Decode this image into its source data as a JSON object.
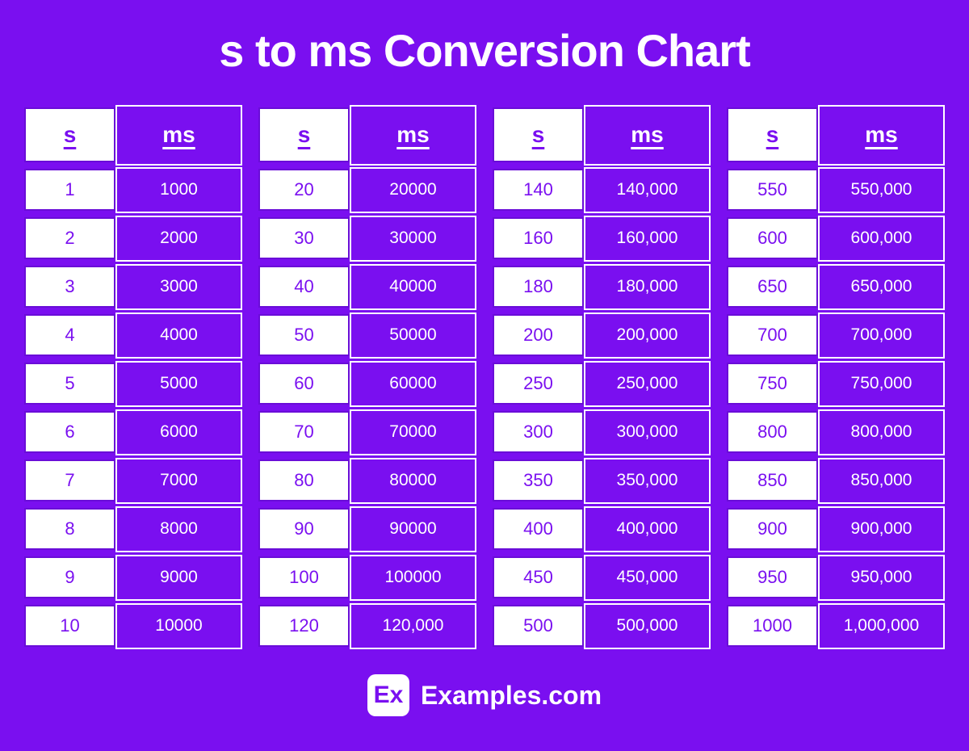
{
  "title": "s to ms Conversion Chart",
  "colors": {
    "background": "#7a0ff0",
    "cell_purple": "#7a0ff0",
    "border_purple": "#6a0dd8",
    "white": "#ffffff"
  },
  "chart_data": {
    "type": "table",
    "title": "s to ms Conversion Chart",
    "column_headers": [
      "s",
      "ms"
    ],
    "tables": [
      {
        "rows": [
          [
            "1",
            "1000"
          ],
          [
            "2",
            "2000"
          ],
          [
            "3",
            "3000"
          ],
          [
            "4",
            "4000"
          ],
          [
            "5",
            "5000"
          ],
          [
            "6",
            "6000"
          ],
          [
            "7",
            "7000"
          ],
          [
            "8",
            "8000"
          ],
          [
            "9",
            "9000"
          ],
          [
            "10",
            "10000"
          ]
        ]
      },
      {
        "rows": [
          [
            "20",
            "20000"
          ],
          [
            "30",
            "30000"
          ],
          [
            "40",
            "40000"
          ],
          [
            "50",
            "50000"
          ],
          [
            "60",
            "60000"
          ],
          [
            "70",
            "70000"
          ],
          [
            "80",
            "80000"
          ],
          [
            "90",
            "90000"
          ],
          [
            "100",
            "100000"
          ],
          [
            "120",
            "120,000"
          ]
        ]
      },
      {
        "rows": [
          [
            "140",
            "140,000"
          ],
          [
            "160",
            "160,000"
          ],
          [
            "180",
            "180,000"
          ],
          [
            "200",
            "200,000"
          ],
          [
            "250",
            "250,000"
          ],
          [
            "300",
            "300,000"
          ],
          [
            "350",
            "350,000"
          ],
          [
            "400",
            "400,000"
          ],
          [
            "450",
            "450,000"
          ],
          [
            "500",
            "500,000"
          ]
        ]
      },
      {
        "rows": [
          [
            "550",
            "550,000"
          ],
          [
            "600",
            "600,000"
          ],
          [
            "650",
            "650,000"
          ],
          [
            "700",
            "700,000"
          ],
          [
            "750",
            "750,000"
          ],
          [
            "800",
            "800,000"
          ],
          [
            "850",
            "850,000"
          ],
          [
            "900",
            "900,000"
          ],
          [
            "950",
            "950,000"
          ],
          [
            "1000",
            "1,000,000"
          ]
        ]
      }
    ]
  },
  "footer": {
    "logo_text": "Ex",
    "brand": "Examples.com"
  }
}
